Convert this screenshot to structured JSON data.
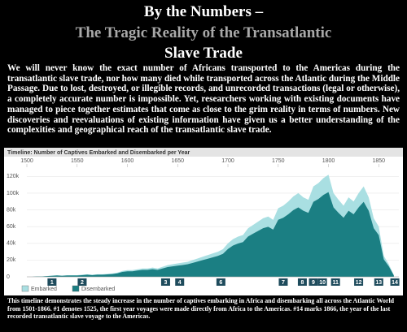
{
  "header": {
    "title_lines": [
      "By the Numbers –",
      "The Tragic Reality of the Transatlantic",
      "Slave Trade"
    ]
  },
  "intro": "We will never know the exact number of Africans transported to the Americas during the transatlantic slave trade, nor how many died while transported across the Atlantic during the Middle Passage. Due to lost, destroyed, or illegible records, and unrecorded transactions (legal or otherwise), a completely accurate number is impossible. Yet, researchers working with existing documents have managed to piece together estimates that come as close to the grim reality in terms of numbers. New discoveries and reevaluations of existing information have given us a better understanding of the complexities and geographical reach of the transatlantic slave trade.",
  "chart_data": {
    "type": "area",
    "title": "Timeline: Number of Captives Embarked and Disembarked per Year",
    "x": [
      1500,
      1505,
      1510,
      1515,
      1520,
      1525,
      1530,
      1535,
      1540,
      1545,
      1550,
      1555,
      1560,
      1565,
      1570,
      1575,
      1580,
      1585,
      1590,
      1595,
      1600,
      1605,
      1610,
      1615,
      1620,
      1625,
      1630,
      1635,
      1640,
      1645,
      1650,
      1655,
      1660,
      1665,
      1670,
      1675,
      1680,
      1685,
      1690,
      1695,
      1700,
      1705,
      1710,
      1715,
      1720,
      1725,
      1730,
      1735,
      1740,
      1745,
      1750,
      1755,
      1760,
      1765,
      1770,
      1775,
      1780,
      1785,
      1790,
      1795,
      1800,
      1805,
      1810,
      1815,
      1820,
      1825,
      1830,
      1835,
      1840,
      1845,
      1850,
      1855,
      1860,
      1865
    ],
    "series": [
      {
        "name": "Embarked",
        "color": "#a9dfe2",
        "values": [
          0,
          0,
          500,
          500,
          1000,
          1500,
          2000,
          1500,
          2000,
          2000,
          2000,
          2500,
          3000,
          2500,
          3000,
          3000,
          3500,
          4000,
          5000,
          7000,
          8000,
          8000,
          9000,
          10000,
          10000,
          11000,
          10000,
          12000,
          14000,
          15000,
          16000,
          17000,
          18000,
          20000,
          22000,
          24000,
          26000,
          28000,
          30000,
          33000,
          40000,
          45000,
          48000,
          50000,
          58000,
          62000,
          66000,
          70000,
          72000,
          68000,
          82000,
          85000,
          90000,
          96000,
          100000,
          95000,
          92000,
          108000,
          112000,
          118000,
          122000,
          100000,
          92000,
          85000,
          95000,
          90000,
          100000,
          108000,
          95000,
          70000,
          60000,
          25000,
          15000,
          2000
        ]
      },
      {
        "name": "Disembarked",
        "color": "#1b7f83",
        "values": [
          0,
          0,
          400,
          400,
          800,
          1200,
          1600,
          1200,
          1600,
          1600,
          1600,
          2000,
          2500,
          2000,
          2500,
          2500,
          2900,
          3300,
          4100,
          5800,
          6600,
          6600,
          7500,
          8300,
          8300,
          9100,
          8300,
          10000,
          11600,
          12500,
          13300,
          14100,
          15000,
          16600,
          18300,
          20000,
          21600,
          23300,
          25000,
          27400,
          33200,
          37400,
          39800,
          41500,
          48100,
          51500,
          54800,
          58100,
          59800,
          56400,
          68100,
          70600,
          74700,
          79700,
          83000,
          78900,
          76400,
          89600,
          93000,
          97900,
          101300,
          83000,
          76400,
          70600,
          78900,
          74700,
          83000,
          89600,
          78900,
          58100,
          49800,
          20800,
          12500,
          1700
        ]
      }
    ],
    "xlim": [
      1500,
      1870
    ],
    "xticks": [
      1500,
      1550,
      1600,
      1650,
      1700,
      1750,
      1800,
      1850
    ],
    "ylim": [
      0,
      130000
    ],
    "yticks": [
      {
        "value": 0,
        "label": "0"
      },
      {
        "value": 20000,
        "label": "20k"
      },
      {
        "value": 40000,
        "label": "40k"
      },
      {
        "value": 60000,
        "label": "60k"
      },
      {
        "value": 80000,
        "label": "80k"
      },
      {
        "value": 100000,
        "label": "100k"
      },
      {
        "value": 120000,
        "label": "120k"
      }
    ],
    "grid": true,
    "markers": [
      {
        "label": "1",
        "year": 1525
      },
      {
        "label": "2",
        "year": 1555
      },
      {
        "label": "3",
        "year": 1638
      },
      {
        "label": "4",
        "year": 1652
      },
      {
        "label": "6",
        "year": 1693
      },
      {
        "label": "7",
        "year": 1755
      },
      {
        "label": "8",
        "year": 1774
      },
      {
        "label": "9",
        "year": 1785
      },
      {
        "label": "10",
        "year": 1794
      },
      {
        "label": "11",
        "year": 1807
      },
      {
        "label": "12",
        "year": 1830
      },
      {
        "label": "13",
        "year": 1850
      },
      {
        "label": "14",
        "year": 1866
      }
    ],
    "marker_color": "#1e4b5c"
  },
  "caption": "This timeline demonstrates the steady increase in the number of captives embarking in Africa and disembarking all across the Atlantic World from 1501-1866. #1 denotes 1525, the first year voyages were made directly from Africa to the Americas. #14 marks 1866, the year of the last recorded transatlantic slave voyage to the Americas."
}
